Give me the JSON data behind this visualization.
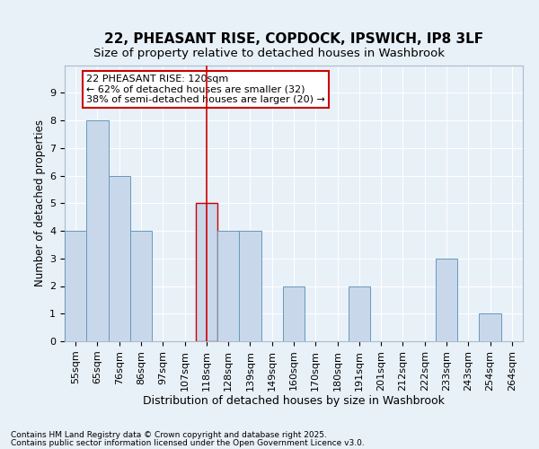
{
  "title1": "22, PHEASANT RISE, COPDOCK, IPSWICH, IP8 3LF",
  "title2": "Size of property relative to detached houses in Washbrook",
  "xlabel": "Distribution of detached houses by size in Washbrook",
  "ylabel": "Number of detached properties",
  "categories": [
    "55sqm",
    "65sqm",
    "76sqm",
    "86sqm",
    "97sqm",
    "107sqm",
    "118sqm",
    "128sqm",
    "139sqm",
    "149sqm",
    "160sqm",
    "170sqm",
    "180sqm",
    "191sqm",
    "201sqm",
    "212sqm",
    "222sqm",
    "233sqm",
    "243sqm",
    "254sqm",
    "264sqm"
  ],
  "values": [
    4,
    8,
    6,
    4,
    0,
    0,
    5,
    4,
    4,
    0,
    2,
    0,
    0,
    2,
    0,
    0,
    0,
    3,
    0,
    1,
    0
  ],
  "bar_color": "#c8d8ea",
  "bar_edge_color": "#6699bb",
  "highlight_index": 6,
  "highlight_line_color": "#cc0000",
  "ylim": [
    0,
    10
  ],
  "yticks": [
    0,
    1,
    2,
    3,
    4,
    5,
    6,
    7,
    8,
    9,
    10
  ],
  "annotation_text": "22 PHEASANT RISE: 120sqm\n← 62% of detached houses are smaller (32)\n38% of semi-detached houses are larger (20) →",
  "annotation_box_color": "#cc0000",
  "footnote1": "Contains HM Land Registry data © Crown copyright and database right 2025.",
  "footnote2": "Contains public sector information licensed under the Open Government Licence v3.0.",
  "bg_color": "#e8f0f8",
  "plot_bg_color": "#e8f0f8",
  "grid_color": "#ffffff",
  "title1_fontsize": 11,
  "title2_fontsize": 9.5,
  "xlabel_fontsize": 9,
  "ylabel_fontsize": 8.5,
  "tick_fontsize": 8,
  "annot_fontsize": 8,
  "footnote_fontsize": 6.5
}
